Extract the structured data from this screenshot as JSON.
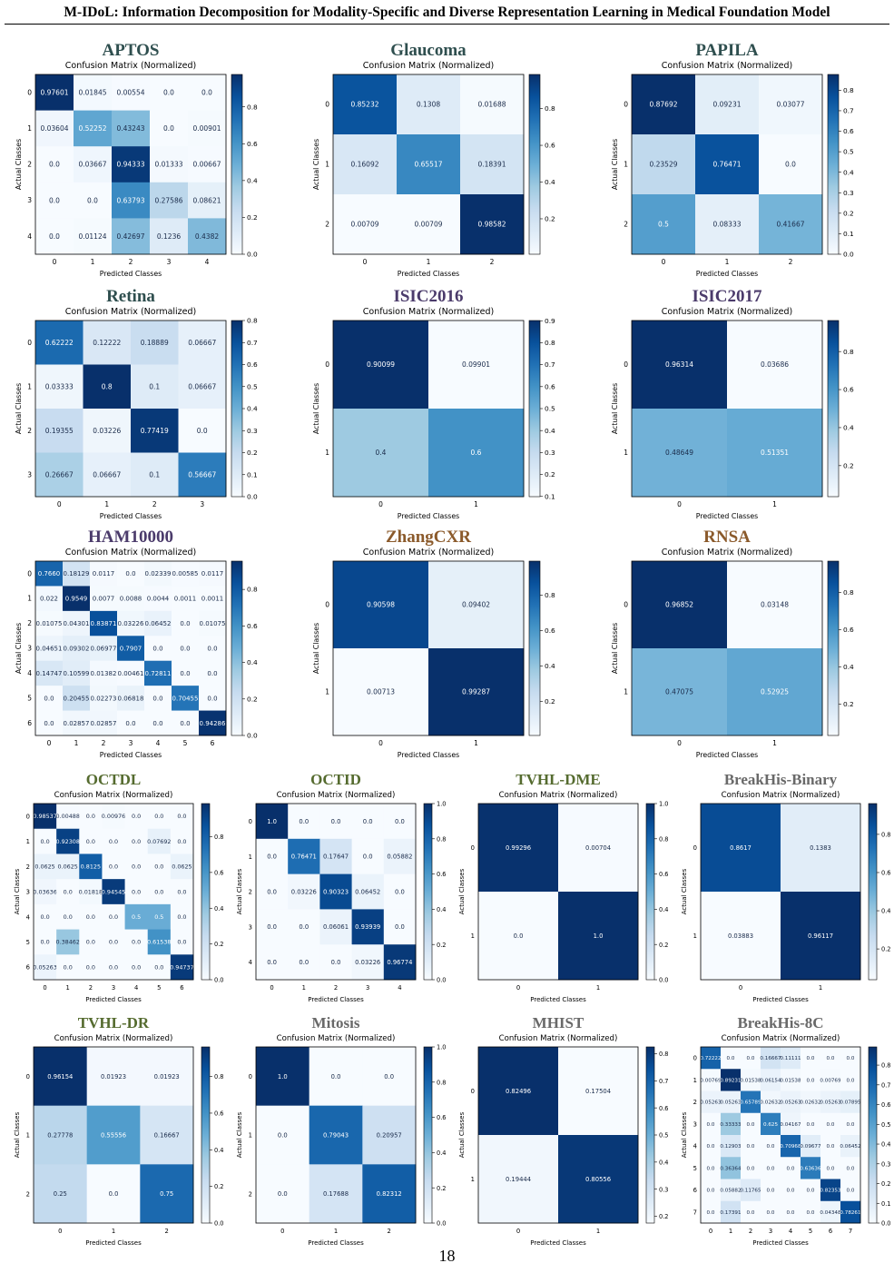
{
  "header": {
    "title": "M-IDoL: Information Decomposition for Modality-Specific and Diverse Representation Learning in Medical Foundation Model"
  },
  "page_number": "18",
  "colors": {
    "cmap_low": "#f7fbff",
    "cmap_high": "#08306b",
    "title_default": "#2f4f4f"
  },
  "chart_data": [
    {
      "type": "heatmap",
      "dataset_label": "APTOS",
      "label_color": "#2f4f4f",
      "title": "Confusion Matrix (Normalized)",
      "xlabel": "Predicted Classes",
      "ylabel": "Actual Classes",
      "classes": [
        "0",
        "1",
        "2",
        "3",
        "4"
      ],
      "matrix": [
        [
          "0.97601",
          "0.01845",
          "0.00554",
          "0.0",
          "0.0"
        ],
        [
          "0.03604",
          "0.52252",
          "0.43243",
          "0.0",
          "0.00901"
        ],
        [
          "0.0",
          "0.03667",
          "0.94333",
          "0.01333",
          "0.00667"
        ],
        [
          "0.0",
          "0.0",
          "0.63793",
          "0.27586",
          "0.08621"
        ],
        [
          "0.0",
          "0.01124",
          "0.42697",
          "0.1236",
          "0.4382"
        ]
      ],
      "colorbar": {
        "min": 0.0,
        "max": 0.97601,
        "ticks": [
          "0.0",
          "0.2",
          "0.4",
          "0.6",
          "0.8"
        ]
      }
    },
    {
      "type": "heatmap",
      "dataset_label": "Glaucoma",
      "label_color": "#2f4f4f",
      "title": "Confusion Matrix (Normalized)",
      "xlabel": "Predicted Classes",
      "ylabel": "Actual Classes",
      "classes": [
        "0",
        "1",
        "2"
      ],
      "matrix": [
        [
          "0.85232",
          "0.1308",
          "0.01688"
        ],
        [
          "0.16092",
          "0.65517",
          "0.18391"
        ],
        [
          "0.00709",
          "0.00709",
          "0.98582"
        ]
      ],
      "colorbar": {
        "min": 0.00709,
        "max": 0.98582,
        "ticks": [
          "0.2",
          "0.4",
          "0.6",
          "0.8"
        ]
      }
    },
    {
      "type": "heatmap",
      "dataset_label": "PAPILA",
      "label_color": "#2f4f4f",
      "title": "Confusion Matrix (Normalized)",
      "xlabel": "Predicted Classes",
      "ylabel": "Actual Classes",
      "classes": [
        "0",
        "1",
        "2"
      ],
      "matrix": [
        [
          "0.87692",
          "0.09231",
          "0.03077"
        ],
        [
          "0.23529",
          "0.76471",
          "0.0"
        ],
        [
          "0.5",
          "0.08333",
          "0.41667"
        ]
      ],
      "colorbar": {
        "min": 0.0,
        "max": 0.87692,
        "ticks": [
          "0.0",
          "0.1",
          "0.2",
          "0.3",
          "0.4",
          "0.5",
          "0.6",
          "0.7",
          "0.8"
        ]
      }
    },
    {
      "type": "heatmap",
      "dataset_label": "Retina",
      "label_color": "#2f4f4f",
      "title": "Confusion Matrix (Normalized)",
      "xlabel": "Predicted Classes",
      "ylabel": "Actual Classes",
      "classes": [
        "0",
        "1",
        "2",
        "3"
      ],
      "matrix": [
        [
          "0.62222",
          "0.12222",
          "0.18889",
          "0.06667"
        ],
        [
          "0.03333",
          "0.8",
          "0.1",
          "0.06667"
        ],
        [
          "0.19355",
          "0.03226",
          "0.77419",
          "0.0"
        ],
        [
          "0.26667",
          "0.06667",
          "0.1",
          "0.56667"
        ]
      ],
      "colorbar": {
        "min": 0.0,
        "max": 0.8,
        "ticks": [
          "0.0",
          "0.1",
          "0.2",
          "0.3",
          "0.4",
          "0.5",
          "0.6",
          "0.7",
          "0.8"
        ]
      }
    },
    {
      "type": "heatmap",
      "dataset_label": "ISIC2016",
      "label_color": "#4b3b6b",
      "title": "Confusion Matrix (Normalized)",
      "xlabel": "Predicted Classes",
      "ylabel": "Actual Classes",
      "classes": [
        "0",
        "1"
      ],
      "matrix": [
        [
          "0.90099",
          "0.09901"
        ],
        [
          "0.4",
          "0.6"
        ]
      ],
      "colorbar": {
        "min": 0.09901,
        "max": 0.90099,
        "ticks": [
          "0.1",
          "0.2",
          "0.3",
          "0.4",
          "0.5",
          "0.6",
          "0.7",
          "0.8",
          "0.9"
        ]
      }
    },
    {
      "type": "heatmap",
      "dataset_label": "ISIC2017",
      "label_color": "#4b3b6b",
      "title": "Confusion Matrix (Normalized)",
      "xlabel": "Predicted Classes",
      "ylabel": "Actual Classes",
      "classes": [
        "0",
        "1"
      ],
      "matrix": [
        [
          "0.96314",
          "0.03686"
        ],
        [
          "0.48649",
          "0.51351"
        ]
      ],
      "colorbar": {
        "min": 0.03686,
        "max": 0.96314,
        "ticks": [
          "0.2",
          "0.4",
          "0.6",
          "0.8"
        ]
      }
    },
    {
      "type": "heatmap",
      "dataset_label": "HAM10000",
      "label_color": "#4b3b6b",
      "title": "Confusion Matrix (Normalized)",
      "xlabel": "Predicted Classes",
      "ylabel": "Actual Classes",
      "classes": [
        "0",
        "1",
        "2",
        "3",
        "4",
        "5",
        "6"
      ],
      "matrix": [
        [
          "0.7660",
          "0.18129",
          "0.0117",
          "0.0",
          "0.02339",
          "0.00585",
          "0.0117"
        ],
        [
          "0.022",
          "0.9549",
          "0.0077",
          "0.0088",
          "0.0044",
          "0.0011",
          "0.0011"
        ],
        [
          "0.01075",
          "0.04301",
          "0.83871",
          "0.03226",
          "0.06452",
          "0.0",
          "0.01075"
        ],
        [
          "0.04651",
          "0.09302",
          "0.06977",
          "0.7907",
          "0.0",
          "0.0",
          "0.0"
        ],
        [
          "0.14747",
          "0.10599",
          "0.01382",
          "0.00461",
          "0.72811",
          "0.0",
          "0.0"
        ],
        [
          "0.0",
          "0.20455",
          "0.02273",
          "0.06818",
          "0.0",
          "0.70455",
          "0.0"
        ],
        [
          "0.0",
          "0.02857",
          "0.02857",
          "0.0",
          "0.0",
          "0.0",
          "0.94286"
        ]
      ],
      "colorbar": {
        "min": 0.0,
        "max": 0.9549,
        "ticks": [
          "0.0",
          "0.2",
          "0.4",
          "0.6",
          "0.8"
        ]
      }
    },
    {
      "type": "heatmap",
      "dataset_label": "ZhangCXR",
      "label_color": "#8b5a2b",
      "title": "Confusion Matrix (Normalized)",
      "xlabel": "Predicted Classes",
      "ylabel": "Actual Classes",
      "classes": [
        "0",
        "1"
      ],
      "matrix": [
        [
          "0.90598",
          "0.09402"
        ],
        [
          "0.00713",
          "0.99287"
        ]
      ],
      "colorbar": {
        "min": 0.00713,
        "max": 0.99287,
        "ticks": [
          "0.2",
          "0.4",
          "0.6",
          "0.8"
        ]
      }
    },
    {
      "type": "heatmap",
      "dataset_label": "RNSA",
      "label_color": "#8b5a2b",
      "title": "Confusion Matrix (Normalized)",
      "xlabel": "Predicted Classes",
      "ylabel": "Actual Classes",
      "classes": [
        "0",
        "1"
      ],
      "matrix": [
        [
          "0.96852",
          "0.03148"
        ],
        [
          "0.47075",
          "0.52925"
        ]
      ],
      "colorbar": {
        "min": 0.03148,
        "max": 0.96852,
        "ticks": [
          "0.2",
          "0.4",
          "0.6",
          "0.8"
        ]
      }
    },
    {
      "type": "heatmap",
      "dataset_label": "OCTDL",
      "label_color": "#556b2f",
      "title": "Confusion Matrix (Normalized)",
      "xlabel": "Predicted Classes",
      "ylabel": "Actual Classes",
      "classes": [
        "0",
        "1",
        "2",
        "3",
        "4",
        "5",
        "6"
      ],
      "matrix": [
        [
          "0.98537",
          "0.00488",
          "0.0",
          "0.00976",
          "0.0",
          "0.0",
          "0.0"
        ],
        [
          "0.0",
          "0.92308",
          "0.0",
          "0.0",
          "0.0",
          "0.07692",
          "0.0"
        ],
        [
          "0.0625",
          "0.0625",
          "0.8125",
          "0.0",
          "0.0",
          "0.0",
          "0.0625"
        ],
        [
          "0.03636",
          "0.0",
          "0.01818",
          "0.94545",
          "0.0",
          "0.0",
          "0.0"
        ],
        [
          "0.0",
          "0.0",
          "0.0",
          "0.0",
          "0.5",
          "0.5",
          "0.0"
        ],
        [
          "0.0",
          "0.38462",
          "0.0",
          "0.0",
          "0.0",
          "0.61538",
          "0.0"
        ],
        [
          "0.05263",
          "0.0",
          "0.0",
          "0.0",
          "0.0",
          "0.0",
          "0.94737"
        ]
      ],
      "colorbar": {
        "min": 0.0,
        "max": 0.98537,
        "ticks": [
          "0.0",
          "0.2",
          "0.4",
          "0.6",
          "0.8"
        ]
      }
    },
    {
      "type": "heatmap",
      "dataset_label": "OCTID",
      "label_color": "#556b2f",
      "title": "Confusion Matrix (Normalized)",
      "xlabel": "Predicted Classes",
      "ylabel": "Actual Classes",
      "classes": [
        "0",
        "1",
        "2",
        "3",
        "4"
      ],
      "matrix": [
        [
          "1.0",
          "0.0",
          "0.0",
          "0.0",
          "0.0"
        ],
        [
          "0.0",
          "0.76471",
          "0.17647",
          "0.0",
          "0.05882"
        ],
        [
          "0.0",
          "0.03226",
          "0.90323",
          "0.06452",
          "0.0"
        ],
        [
          "0.0",
          "0.0",
          "0.06061",
          "0.93939",
          "0.0"
        ],
        [
          "0.0",
          "0.0",
          "0.0",
          "0.03226",
          "0.96774"
        ]
      ],
      "colorbar": {
        "min": 0.0,
        "max": 1.0,
        "ticks": [
          "0.0",
          "0.2",
          "0.4",
          "0.6",
          "0.8",
          "1.0"
        ]
      }
    },
    {
      "type": "heatmap",
      "dataset_label": "TVHL-DME",
      "label_color": "#556b2f",
      "title": "Confusion Matrix (Normalized)",
      "xlabel": "Predicted Classes",
      "ylabel": "Actual Classes",
      "classes": [
        "0",
        "1"
      ],
      "matrix": [
        [
          "0.99296",
          "0.00704"
        ],
        [
          "0.0",
          "1.0"
        ]
      ],
      "colorbar": {
        "min": 0.0,
        "max": 1.0,
        "ticks": [
          "0.0",
          "0.2",
          "0.4",
          "0.6",
          "0.8",
          "1.0"
        ]
      }
    },
    {
      "type": "heatmap",
      "dataset_label": "BreakHis-Binary",
      "label_color": "#696969",
      "title": "Confusion Matrix (Normalized)",
      "xlabel": "Predicted Classes",
      "ylabel": "Actual Classes",
      "classes": [
        "0",
        "1"
      ],
      "matrix": [
        [
          "0.8617",
          "0.1383"
        ],
        [
          "0.03883",
          "0.96117"
        ]
      ],
      "colorbar": {
        "min": 0.03883,
        "max": 0.96117,
        "ticks": [
          "0.2",
          "0.4",
          "0.6",
          "0.8"
        ]
      }
    },
    {
      "type": "heatmap",
      "dataset_label": "TVHL-DR",
      "label_color": "#556b2f",
      "title": "Confusion Matrix (Normalized)",
      "xlabel": "Predicted Classes",
      "ylabel": "Actual Classes",
      "classes": [
        "0",
        "1",
        "2"
      ],
      "matrix": [
        [
          "0.96154",
          "0.01923",
          "0.01923"
        ],
        [
          "0.27778",
          "0.55556",
          "0.16667"
        ],
        [
          "0.25",
          "0.0",
          "0.75"
        ]
      ],
      "colorbar": {
        "min": 0.0,
        "max": 0.96154,
        "ticks": [
          "0.0",
          "0.2",
          "0.4",
          "0.6",
          "0.8"
        ]
      }
    },
    {
      "type": "heatmap",
      "dataset_label": "Mitosis",
      "label_color": "#696969",
      "title": "Confusion Matrix (Normalized)",
      "xlabel": "Predicted Classes",
      "ylabel": "Actual Classes",
      "classes": [
        "0",
        "1",
        "2"
      ],
      "matrix": [
        [
          "1.0",
          "0.0",
          "0.0"
        ],
        [
          "0.0",
          "0.79043",
          "0.20957"
        ],
        [
          "0.0",
          "0.17688",
          "0.82312"
        ]
      ],
      "colorbar": {
        "min": 0.0,
        "max": 1.0,
        "ticks": [
          "0.0",
          "0.2",
          "0.4",
          "0.6",
          "0.8",
          "1.0"
        ]
      }
    },
    {
      "type": "heatmap",
      "dataset_label": "MHIST",
      "label_color": "#696969",
      "title": "Confusion Matrix (Normalized)",
      "xlabel": "Predicted Classes",
      "ylabel": "Actual Classes",
      "classes": [
        "0",
        "1"
      ],
      "matrix": [
        [
          "0.82496",
          "0.17504"
        ],
        [
          "0.19444",
          "0.80556"
        ]
      ],
      "colorbar": {
        "min": 0.17504,
        "max": 0.82496,
        "ticks": [
          "0.2",
          "0.3",
          "0.4",
          "0.5",
          "0.6",
          "0.7",
          "0.8"
        ]
      }
    },
    {
      "type": "heatmap",
      "dataset_label": "BreakHis-8C",
      "label_color": "#696969",
      "title": "Confusion Matrix (Normalized)",
      "xlabel": "Predicted Classes",
      "ylabel": "Actual Classes",
      "classes": [
        "0",
        "1",
        "2",
        "3",
        "4",
        "5",
        "6",
        "7"
      ],
      "matrix": [
        [
          "0.72222",
          "0.0",
          "0.0",
          "0.16667",
          "0.11111",
          "0.0",
          "0.0",
          "0.0"
        ],
        [
          "0.00769",
          "0.89231",
          "0.01538",
          "0.06154",
          "0.01538",
          "0.0",
          "0.00769",
          "0.0"
        ],
        [
          "0.05263",
          "0.05263",
          "0.65789",
          "0.02632",
          "0.05263",
          "0.02632",
          "0.05263",
          "0.07895"
        ],
        [
          "0.0",
          "0.33333",
          "0.0",
          "0.625",
          "0.04167",
          "0.0",
          "0.0",
          "0.0"
        ],
        [
          "0.0",
          "0.12903",
          "0.0",
          "0.0",
          "0.70968",
          "0.09677",
          "0.0",
          "0.06452"
        ],
        [
          "0.0",
          "0.36364",
          "0.0",
          "0.0",
          "0.0",
          "0.63636",
          "0.0",
          "0.0"
        ],
        [
          "0.0",
          "0.05882",
          "0.11765",
          "0.0",
          "0.0",
          "0.0",
          "0.82353",
          "0.0"
        ],
        [
          "0.0",
          "0.17391",
          "0.0",
          "0.0",
          "0.0",
          "0.0",
          "0.04348",
          "0.78261"
        ]
      ],
      "colorbar": {
        "min": 0.0,
        "max": 0.89231,
        "ticks": [
          "0.0",
          "0.1",
          "0.2",
          "0.3",
          "0.4",
          "0.5",
          "0.6",
          "0.7",
          "0.8"
        ]
      }
    }
  ]
}
